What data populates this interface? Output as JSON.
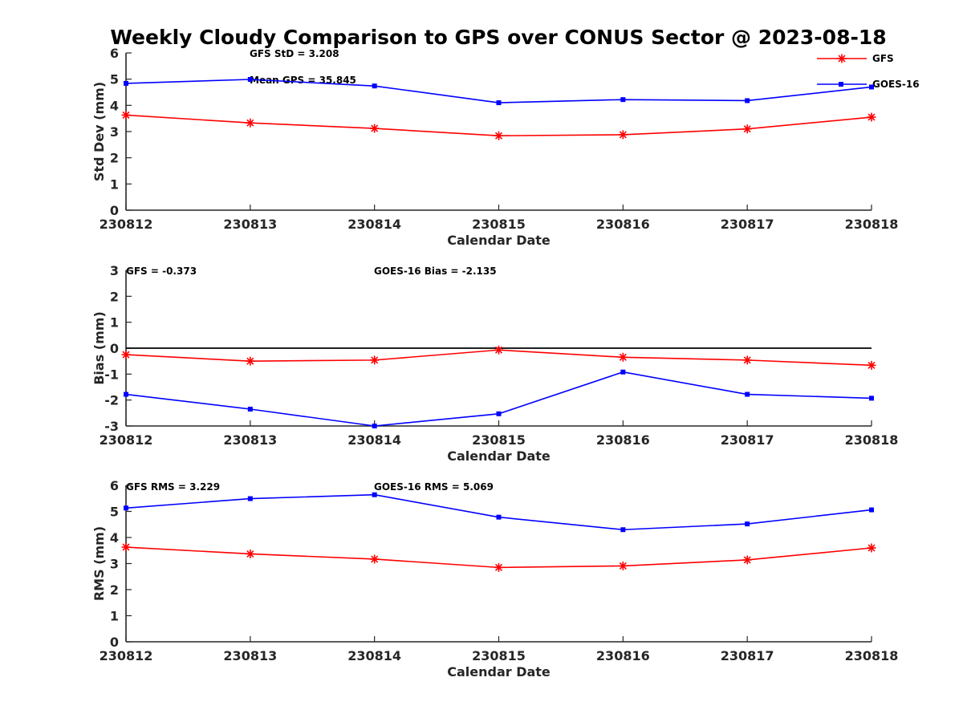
{
  "title": "Weekly Cloudy Comparison to GPS over CONUS Sector @ 2023-08-18",
  "colors": {
    "gfs": "#ff0000",
    "goes16": "#0000ff",
    "axis": "#262626",
    "zero_line": "#000000"
  },
  "legend": {
    "placement": "top-right",
    "gfs_label": "GFS",
    "goes16_label": "GOES-16"
  },
  "chart_data": [
    {
      "type": "line",
      "categories": [
        "230812",
        "230813",
        "230814",
        "230815",
        "230816",
        "230817",
        "230818"
      ],
      "xlabel": "Calendar Date",
      "ylabel": "Std Dev (mm)",
      "ylim": [
        0,
        6
      ],
      "yticks": [
        "0",
        "1",
        "2",
        "3",
        "4",
        "5",
        "6"
      ],
      "zero_line": false,
      "series": [
        {
          "name": "GFS",
          "values": [
            3.63,
            3.33,
            3.12,
            2.84,
            2.88,
            3.1,
            3.55
          ]
        },
        {
          "name": "GOES-16",
          "values": [
            4.84,
            4.99,
            4.74,
            4.1,
            4.22,
            4.18,
            4.7
          ]
        }
      ],
      "annotations": [
        "GFS StD = 3.208",
        "Mean GPS = 35.845"
      ]
    },
    {
      "type": "line",
      "categories": [
        "230812",
        "230813",
        "230814",
        "230815",
        "230816",
        "230817",
        "230818"
      ],
      "xlabel": "Calendar Date",
      "ylabel": "Bias (mm)",
      "ylim": [
        -3,
        3
      ],
      "yticks": [
        "-3",
        "-2",
        "-1",
        "0",
        "1",
        "2",
        "3"
      ],
      "zero_line": true,
      "series": [
        {
          "name": "GFS",
          "values": [
            -0.25,
            -0.5,
            -0.46,
            -0.07,
            -0.35,
            -0.46,
            -0.66
          ]
        },
        {
          "name": "GOES-16",
          "values": [
            -1.78,
            -2.35,
            -3.05,
            -2.53,
            -0.92,
            -1.78,
            -1.93
          ]
        }
      ],
      "annotations": [
        "GFS = -0.373",
        "GOES-16 Bias  = -2.135"
      ]
    },
    {
      "type": "line",
      "categories": [
        "230812",
        "230813",
        "230814",
        "230815",
        "230816",
        "230817",
        "230818"
      ],
      "xlabel": "Calendar Date",
      "ylabel": "RMS (mm)",
      "ylim": [
        0,
        6
      ],
      "yticks": [
        "0",
        "1",
        "2",
        "3",
        "4",
        "5",
        "6"
      ],
      "zero_line": false,
      "series": [
        {
          "name": "GFS",
          "values": [
            3.63,
            3.37,
            3.17,
            2.85,
            2.91,
            3.14,
            3.6
          ]
        },
        {
          "name": "GOES-16",
          "values": [
            5.13,
            5.49,
            5.64,
            4.78,
            4.3,
            4.52,
            5.06
          ]
        }
      ],
      "annotations": [
        "GFS RMS = 3.229",
        "GOES-16 RMS = 5.069"
      ]
    }
  ]
}
